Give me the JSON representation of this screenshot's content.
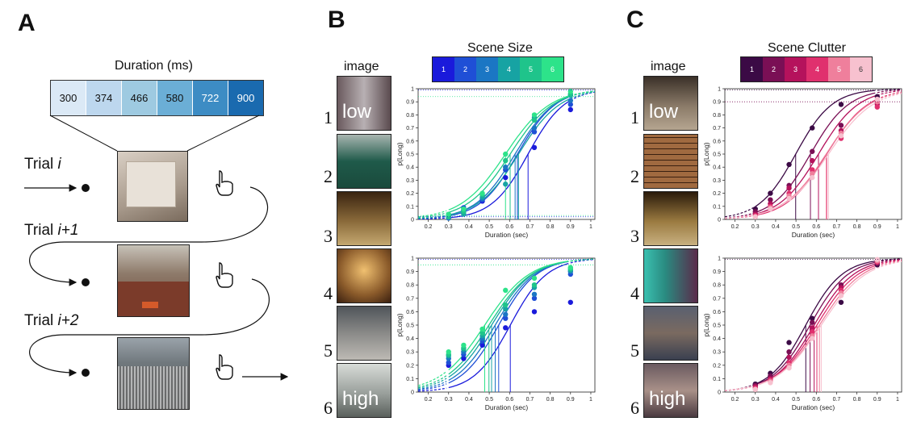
{
  "panels": {
    "a": "A",
    "b": "B",
    "c": "C"
  },
  "panel_a": {
    "duration_title": "Duration (ms)",
    "durations": [
      "300",
      "374",
      "466",
      "580",
      "722",
      "900"
    ],
    "duration_colors": [
      "#dbe9f6",
      "#bdd7ee",
      "#9ecae1",
      "#6baed6",
      "#3d8cc4",
      "#1a6aaf"
    ],
    "trials": [
      {
        "prefix": "Trial ",
        "suffix": "i"
      },
      {
        "prefix": "Trial ",
        "suffix": "i+1"
      },
      {
        "prefix": "Trial ",
        "suffix": "i+2"
      }
    ],
    "icons": [
      "hand-pointer-icon"
    ]
  },
  "panel_b": {
    "image_label": "image",
    "legend_title": "Scene Size",
    "legend_values": [
      "1",
      "2",
      "3",
      "4",
      "5",
      "6"
    ],
    "legend_colors": [
      "#1a1adb",
      "#1f4fd6",
      "#1b76c4",
      "#17a3a3",
      "#1fc48b",
      "#2de38a"
    ],
    "rows": [
      "1",
      "2",
      "3",
      "4",
      "5",
      "6"
    ],
    "low_label": "low",
    "high_label": "high"
  },
  "panel_c": {
    "image_label": "image",
    "legend_title": "Scene Clutter",
    "legend_values": [
      "1",
      "2",
      "3",
      "4",
      "5",
      "6"
    ],
    "legend_colors": [
      "#3b0a45",
      "#7a0f55",
      "#b5125c",
      "#e0306e",
      "#ef7f9c",
      "#f7c1cf"
    ],
    "rows": [
      "1",
      "2",
      "3",
      "4",
      "5",
      "6"
    ],
    "low_label": "low",
    "high_label": "high"
  },
  "chart_data": [
    {
      "type": "scatter",
      "title": "Scene Size (top)",
      "xlabel": "Duration (sec)",
      "ylabel": "p(Long)",
      "xlim": [
        0.15,
        1.02
      ],
      "ylim": [
        0,
        1
      ],
      "xticks": [
        "0.2",
        "0.3",
        "0.4",
        "0.5",
        "0.6",
        "0.7",
        "0.8",
        "0.9",
        "1"
      ],
      "yticks": [
        "0",
        "0.1",
        "0.2",
        "0.3",
        "0.4",
        "0.5",
        "0.6",
        "0.7",
        "0.8",
        "0.9",
        "1"
      ],
      "x": [
        0.3,
        0.374,
        0.466,
        0.58,
        0.722,
        0.9
      ],
      "series": [
        {
          "name": "1",
          "values": [
            0.02,
            0.07,
            0.14,
            0.32,
            0.55,
            0.84
          ]
        },
        {
          "name": "2",
          "values": [
            0.03,
            0.09,
            0.15,
            0.38,
            0.67,
            0.88
          ]
        },
        {
          "name": "3",
          "values": [
            0.01,
            0.05,
            0.16,
            0.4,
            0.7,
            0.91
          ]
        },
        {
          "name": "4",
          "values": [
            0.03,
            0.04,
            0.17,
            0.27,
            0.78,
            0.95
          ]
        },
        {
          "name": "5",
          "values": [
            0.02,
            0.06,
            0.19,
            0.45,
            0.76,
            0.96
          ]
        },
        {
          "name": "6",
          "values": [
            0.04,
            0.08,
            0.2,
            0.5,
            0.8,
            0.98
          ]
        }
      ]
    },
    {
      "type": "scatter",
      "title": "Scene Size (bottom)",
      "xlabel": "Duration (sec)",
      "ylabel": "p(Long)",
      "xlim": [
        0.15,
        1.02
      ],
      "ylim": [
        0,
        1
      ],
      "xticks": [
        "0.2",
        "0.3",
        "0.4",
        "0.5",
        "0.6",
        "0.7",
        "0.8",
        "0.9",
        "1"
      ],
      "yticks": [
        "0",
        "0.1",
        "0.2",
        "0.3",
        "0.4",
        "0.5",
        "0.6",
        "0.7",
        "0.8",
        "0.9",
        "1"
      ],
      "x": [
        0.3,
        0.374,
        0.466,
        0.58,
        0.722,
        0.9
      ],
      "series": [
        {
          "name": "1",
          "values": [
            0.2,
            0.25,
            0.35,
            0.48,
            0.6,
            0.67
          ]
        },
        {
          "name": "2",
          "values": [
            0.22,
            0.28,
            0.38,
            0.55,
            0.7,
            0.88
          ]
        },
        {
          "name": "3",
          "values": [
            0.25,
            0.3,
            0.4,
            0.58,
            0.73,
            0.9
          ]
        },
        {
          "name": "4",
          "values": [
            0.27,
            0.32,
            0.42,
            0.62,
            0.78,
            0.91
          ]
        },
        {
          "name": "5",
          "values": [
            0.28,
            0.33,
            0.44,
            0.65,
            0.8,
            0.92
          ]
        },
        {
          "name": "6",
          "values": [
            0.3,
            0.35,
            0.47,
            0.76,
            0.85,
            0.93
          ]
        }
      ]
    },
    {
      "type": "scatter",
      "title": "Scene Clutter (top)",
      "xlabel": "Duration (sec)",
      "ylabel": "p(Long)",
      "xlim": [
        0.15,
        1.02
      ],
      "ylim": [
        0,
        1
      ],
      "xticks": [
        "0.2",
        "0.3",
        "0.4",
        "0.5",
        "0.6",
        "0.7",
        "0.8",
        "0.9",
        "1"
      ],
      "yticks": [
        "0",
        "0.1",
        "0.2",
        "0.3",
        "0.4",
        "0.5",
        "0.6",
        "0.7",
        "0.8",
        "0.9",
        "1"
      ],
      "x": [
        0.3,
        0.374,
        0.466,
        0.58,
        0.722,
        0.9
      ],
      "series": [
        {
          "name": "1",
          "values": [
            0.08,
            0.2,
            0.42,
            0.7,
            0.88,
            0.94
          ]
        },
        {
          "name": "2",
          "values": [
            0.06,
            0.15,
            0.26,
            0.52,
            0.72,
            0.9
          ]
        },
        {
          "name": "3",
          "values": [
            0.04,
            0.12,
            0.24,
            0.45,
            0.68,
            0.88
          ]
        },
        {
          "name": "4",
          "values": [
            0.03,
            0.1,
            0.2,
            0.38,
            0.62,
            0.86
          ]
        },
        {
          "name": "5",
          "values": [
            0.02,
            0.09,
            0.18,
            0.35,
            0.66,
            0.9
          ]
        },
        {
          "name": "6",
          "values": [
            0.02,
            0.08,
            0.16,
            0.32,
            0.64,
            0.92
          ]
        }
      ]
    },
    {
      "type": "scatter",
      "title": "Scene Clutter (bottom)",
      "xlabel": "Duration (sec)",
      "ylabel": "p(Long)",
      "xlim": [
        0.15,
        1.02
      ],
      "ylim": [
        0,
        1
      ],
      "xticks": [
        "0.2",
        "0.3",
        "0.4",
        "0.5",
        "0.6",
        "0.7",
        "0.8",
        "0.9",
        "1"
      ],
      "yticks": [
        "0",
        "0.1",
        "0.2",
        "0.3",
        "0.4",
        "0.5",
        "0.6",
        "0.7",
        "0.8",
        "0.9",
        "1"
      ],
      "x": [
        0.3,
        0.374,
        0.466,
        0.58,
        0.722,
        0.9
      ],
      "series": [
        {
          "name": "1",
          "values": [
            0.06,
            0.14,
            0.37,
            0.55,
            0.67,
            0.95
          ]
        },
        {
          "name": "2",
          "values": [
            0.05,
            0.12,
            0.3,
            0.52,
            0.8,
            0.96
          ]
        },
        {
          "name": "3",
          "values": [
            0.04,
            0.1,
            0.26,
            0.48,
            0.78,
            0.97
          ]
        },
        {
          "name": "4",
          "values": [
            0.03,
            0.09,
            0.22,
            0.45,
            0.76,
            0.97
          ]
        },
        {
          "name": "5",
          "values": [
            0.02,
            0.08,
            0.2,
            0.42,
            0.74,
            0.98
          ]
        },
        {
          "name": "6",
          "values": [
            0.02,
            0.07,
            0.18,
            0.4,
            0.72,
            0.99
          ]
        }
      ]
    }
  ]
}
